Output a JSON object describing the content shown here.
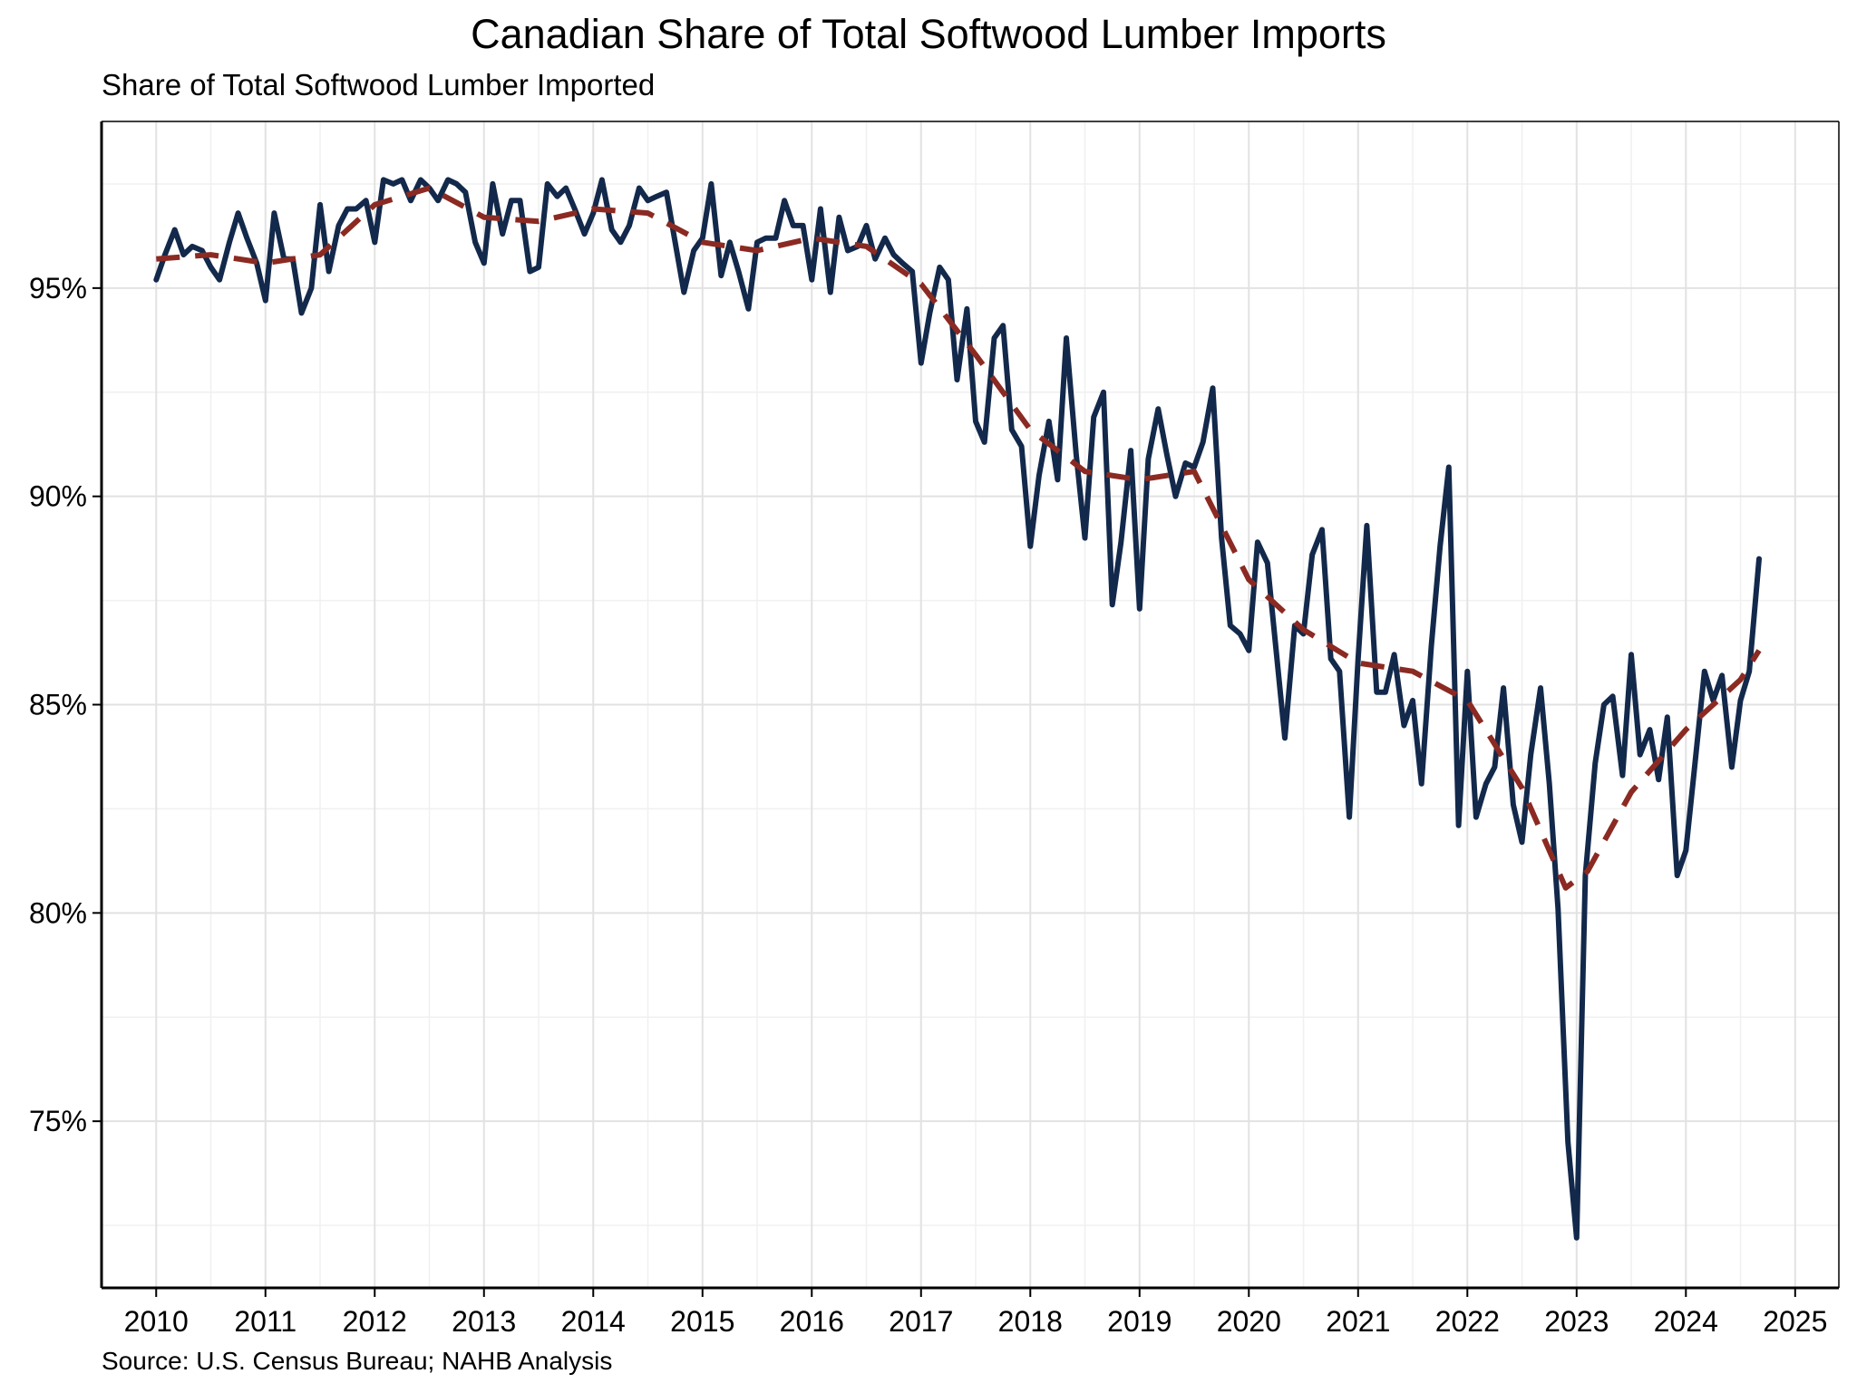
{
  "chart_data": {
    "type": "line",
    "title": "Canadian Share of Total Softwood Lumber Imports",
    "subtitle": "Share of Total Softwood Lumber Imported",
    "source": "Source: U.S. Census Bureau; NAHB Analysis",
    "xlabel": "",
    "ylabel": "",
    "xlim": [
      2009.5,
      2025.4
    ],
    "ylim": [
      71,
      99
    ],
    "x_ticks": [
      2010,
      2011,
      2012,
      2013,
      2014,
      2015,
      2016,
      2017,
      2018,
      2019,
      2020,
      2021,
      2022,
      2023,
      2024,
      2025
    ],
    "x_tick_labels": [
      "2010",
      "2011",
      "2012",
      "2013",
      "2014",
      "2015",
      "2016",
      "2017",
      "2018",
      "2019",
      "2020",
      "2021",
      "2022",
      "2023",
      "2024",
      "2025"
    ],
    "y_ticks": [
      75,
      80,
      85,
      90,
      95
    ],
    "y_tick_labels": [
      "75%",
      "80%",
      "85%",
      "90%",
      "95%"
    ],
    "grid": true,
    "legend": "none",
    "series": [
      {
        "color": "#13294b",
        "style": "solid",
        "values": [
          [
            2010.0,
            95.2
          ],
          [
            2010.08,
            95.8
          ],
          [
            2010.17,
            96.4
          ],
          [
            2010.25,
            95.8
          ],
          [
            2010.33,
            96.0
          ],
          [
            2010.42,
            95.9
          ],
          [
            2010.5,
            95.5
          ],
          [
            2010.58,
            95.2
          ],
          [
            2010.67,
            96.1
          ],
          [
            2010.75,
            96.8
          ],
          [
            2010.83,
            96.2
          ],
          [
            2010.92,
            95.6
          ],
          [
            2011.0,
            94.7
          ],
          [
            2011.08,
            96.8
          ],
          [
            2011.17,
            95.7
          ],
          [
            2011.25,
            95.7
          ],
          [
            2011.33,
            94.4
          ],
          [
            2011.42,
            95.0
          ],
          [
            2011.5,
            97.0
          ],
          [
            2011.58,
            95.4
          ],
          [
            2011.67,
            96.5
          ],
          [
            2011.75,
            96.9
          ],
          [
            2011.83,
            96.9
          ],
          [
            2011.92,
            97.1
          ],
          [
            2012.0,
            96.1
          ],
          [
            2012.08,
            97.6
          ],
          [
            2012.17,
            97.5
          ],
          [
            2012.25,
            97.6
          ],
          [
            2012.33,
            97.1
          ],
          [
            2012.42,
            97.6
          ],
          [
            2012.5,
            97.4
          ],
          [
            2012.58,
            97.1
          ],
          [
            2012.67,
            97.6
          ],
          [
            2012.75,
            97.5
          ],
          [
            2012.83,
            97.3
          ],
          [
            2012.92,
            96.1
          ],
          [
            2013.0,
            95.6
          ],
          [
            2013.08,
            97.5
          ],
          [
            2013.17,
            96.3
          ],
          [
            2013.25,
            97.1
          ],
          [
            2013.33,
            97.1
          ],
          [
            2013.42,
            95.4
          ],
          [
            2013.5,
            95.5
          ],
          [
            2013.58,
            97.5
          ],
          [
            2013.67,
            97.2
          ],
          [
            2013.75,
            97.4
          ],
          [
            2013.83,
            96.9
          ],
          [
            2013.92,
            96.3
          ],
          [
            2014.0,
            96.8
          ],
          [
            2014.08,
            97.6
          ],
          [
            2014.17,
            96.4
          ],
          [
            2014.25,
            96.1
          ],
          [
            2014.33,
            96.5
          ],
          [
            2014.42,
            97.4
          ],
          [
            2014.5,
            97.1
          ],
          [
            2014.58,
            97.2
          ],
          [
            2014.67,
            97.3
          ],
          [
            2014.75,
            96.1
          ],
          [
            2014.83,
            94.9
          ],
          [
            2014.92,
            95.9
          ],
          [
            2015.0,
            96.2
          ],
          [
            2015.08,
            97.5
          ],
          [
            2015.17,
            95.3
          ],
          [
            2015.25,
            96.1
          ],
          [
            2015.33,
            95.4
          ],
          [
            2015.42,
            94.5
          ],
          [
            2015.5,
            96.1
          ],
          [
            2015.58,
            96.2
          ],
          [
            2015.67,
            96.2
          ],
          [
            2015.75,
            97.1
          ],
          [
            2015.83,
            96.5
          ],
          [
            2015.92,
            96.5
          ],
          [
            2016.0,
            95.2
          ],
          [
            2016.08,
            96.9
          ],
          [
            2016.17,
            94.9
          ],
          [
            2016.25,
            96.7
          ],
          [
            2016.33,
            95.9
          ],
          [
            2016.42,
            96.0
          ],
          [
            2016.5,
            96.5
          ],
          [
            2016.58,
            95.7
          ],
          [
            2016.67,
            96.2
          ],
          [
            2016.75,
            95.8
          ],
          [
            2016.83,
            95.6
          ],
          [
            2016.92,
            95.4
          ],
          [
            2017.0,
            93.2
          ],
          [
            2017.08,
            94.4
          ],
          [
            2017.17,
            95.5
          ],
          [
            2017.25,
            95.2
          ],
          [
            2017.33,
            92.8
          ],
          [
            2017.42,
            94.5
          ],
          [
            2017.5,
            91.8
          ],
          [
            2017.58,
            91.3
          ],
          [
            2017.67,
            93.8
          ],
          [
            2017.75,
            94.1
          ],
          [
            2017.83,
            91.6
          ],
          [
            2017.92,
            91.2
          ],
          [
            2018.0,
            88.8
          ],
          [
            2018.08,
            90.5
          ],
          [
            2018.17,
            91.8
          ],
          [
            2018.25,
            90.4
          ],
          [
            2018.33,
            93.8
          ],
          [
            2018.42,
            91.0
          ],
          [
            2018.5,
            89.0
          ],
          [
            2018.58,
            91.9
          ],
          [
            2018.67,
            92.5
          ],
          [
            2018.75,
            87.4
          ],
          [
            2018.83,
            88.9
          ],
          [
            2018.92,
            91.1
          ],
          [
            2019.0,
            87.3
          ],
          [
            2019.08,
            90.9
          ],
          [
            2019.17,
            92.1
          ],
          [
            2019.25,
            91.0
          ],
          [
            2019.33,
            90.0
          ],
          [
            2019.42,
            90.8
          ],
          [
            2019.5,
            90.7
          ],
          [
            2019.58,
            91.3
          ],
          [
            2019.67,
            92.6
          ],
          [
            2019.75,
            89.0
          ],
          [
            2019.83,
            86.9
          ],
          [
            2019.92,
            86.7
          ],
          [
            2020.0,
            86.3
          ],
          [
            2020.08,
            88.9
          ],
          [
            2020.17,
            88.4
          ],
          [
            2020.25,
            86.3
          ],
          [
            2020.33,
            84.2
          ],
          [
            2020.42,
            86.9
          ],
          [
            2020.5,
            86.7
          ],
          [
            2020.58,
            88.6
          ],
          [
            2020.67,
            89.2
          ],
          [
            2020.75,
            86.1
          ],
          [
            2020.83,
            85.8
          ],
          [
            2020.92,
            82.3
          ],
          [
            2021.0,
            86.1
          ],
          [
            2021.08,
            89.3
          ],
          [
            2021.17,
            85.3
          ],
          [
            2021.25,
            85.3
          ],
          [
            2021.33,
            86.2
          ],
          [
            2021.42,
            84.5
          ],
          [
            2021.5,
            85.1
          ],
          [
            2021.58,
            83.1
          ],
          [
            2021.67,
            86.4
          ],
          [
            2021.75,
            88.8
          ],
          [
            2021.83,
            90.7
          ],
          [
            2021.92,
            82.1
          ],
          [
            2022.0,
            85.8
          ],
          [
            2022.08,
            82.3
          ],
          [
            2022.17,
            83.1
          ],
          [
            2022.25,
            83.5
          ],
          [
            2022.33,
            85.4
          ],
          [
            2022.42,
            82.6
          ],
          [
            2022.5,
            81.7
          ],
          [
            2022.58,
            83.8
          ],
          [
            2022.67,
            85.4
          ],
          [
            2022.75,
            83.1
          ],
          [
            2022.83,
            80.1
          ],
          [
            2022.92,
            74.5
          ],
          [
            2023.0,
            72.2
          ],
          [
            2023.08,
            80.9
          ],
          [
            2023.17,
            83.6
          ],
          [
            2023.25,
            85.0
          ],
          [
            2023.33,
            85.2
          ],
          [
            2023.42,
            83.3
          ],
          [
            2023.5,
            86.2
          ],
          [
            2023.58,
            83.8
          ],
          [
            2023.67,
            84.4
          ],
          [
            2023.75,
            83.2
          ],
          [
            2023.83,
            84.7
          ],
          [
            2023.92,
            80.9
          ],
          [
            2024.0,
            81.5
          ],
          [
            2024.08,
            83.5
          ],
          [
            2024.17,
            85.8
          ],
          [
            2024.25,
            85.1
          ],
          [
            2024.33,
            85.7
          ],
          [
            2024.42,
            83.5
          ],
          [
            2024.5,
            85.1
          ],
          [
            2024.58,
            85.8
          ],
          [
            2024.67,
            88.5
          ]
        ]
      },
      {
        "color": "#8b2a22",
        "style": "dashed",
        "values": [
          [
            2010.0,
            95.7
          ],
          [
            2010.5,
            95.8
          ],
          [
            2011.0,
            95.6
          ],
          [
            2011.5,
            95.8
          ],
          [
            2012.0,
            97.0
          ],
          [
            2012.5,
            97.4
          ],
          [
            2013.0,
            96.7
          ],
          [
            2013.5,
            96.6
          ],
          [
            2014.0,
            96.9
          ],
          [
            2014.5,
            96.8
          ],
          [
            2015.0,
            96.1
          ],
          [
            2015.5,
            95.9
          ],
          [
            2016.0,
            96.2
          ],
          [
            2016.5,
            96.0
          ],
          [
            2017.0,
            95.1
          ],
          [
            2017.5,
            93.4
          ],
          [
            2018.0,
            91.6
          ],
          [
            2018.5,
            90.6
          ],
          [
            2019.0,
            90.4
          ],
          [
            2019.5,
            90.6
          ],
          [
            2020.0,
            88.0
          ],
          [
            2020.5,
            86.8
          ],
          [
            2021.0,
            86.0
          ],
          [
            2021.5,
            85.8
          ],
          [
            2022.0,
            85.1
          ],
          [
            2022.5,
            83.0
          ],
          [
            2022.9,
            80.6
          ],
          [
            2023.1,
            81.0
          ],
          [
            2023.5,
            82.9
          ],
          [
            2024.0,
            84.4
          ],
          [
            2024.5,
            85.6
          ],
          [
            2024.67,
            86.3
          ]
        ]
      }
    ]
  }
}
